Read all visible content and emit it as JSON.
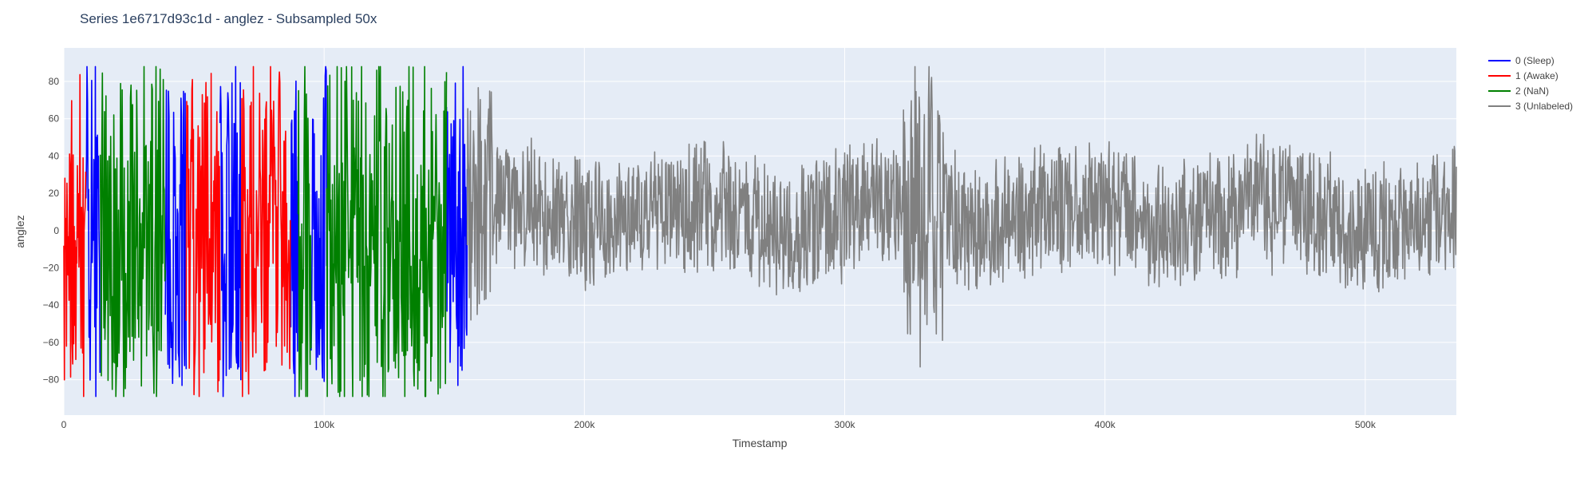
{
  "chart_data": {
    "type": "line",
    "title": "Series 1e6717d93c1d - anglez - Subsampled 50x",
    "xlabel": "Timestamp",
    "ylabel": "anglez",
    "xlim": [
      0,
      535000
    ],
    "ylim": [
      -99,
      98
    ],
    "x_ticks": [
      {
        "value": 0,
        "label": "0"
      },
      {
        "value": 100000,
        "label": "100k"
      },
      {
        "value": 200000,
        "label": "200k"
      },
      {
        "value": 300000,
        "label": "300k"
      },
      {
        "value": 400000,
        "label": "400k"
      },
      {
        "value": 500000,
        "label": "500k"
      }
    ],
    "y_ticks": [
      {
        "value": 80,
        "label": "80"
      },
      {
        "value": 60,
        "label": "60"
      },
      {
        "value": 40,
        "label": "40"
      },
      {
        "value": 20,
        "label": "20"
      },
      {
        "value": 0,
        "label": "0"
      },
      {
        "value": -20,
        "label": "−20"
      },
      {
        "value": -40,
        "label": "−40"
      },
      {
        "value": -60,
        "label": "−60"
      },
      {
        "value": -80,
        "label": "−80"
      }
    ],
    "grid": true,
    "legend_position": "top-right",
    "series": [
      {
        "name": "0 (Sleep)",
        "color": "#0000ff",
        "segments": [
          [
            8500,
            14000
          ],
          [
            39000,
            47000
          ],
          [
            60000,
            68000
          ],
          [
            87000,
            90000
          ],
          [
            95000,
            101000
          ],
          [
            147000,
            155000
          ]
        ]
      },
      {
        "name": "1 (Awake)",
        "color": "#ff0000",
        "segments": [
          [
            0,
            8500
          ],
          [
            47000,
            60000
          ],
          [
            68000,
            87000
          ]
        ]
      },
      {
        "name": "2 (NaN)",
        "color": "#008000",
        "segments": [
          [
            14000,
            39000
          ],
          [
            90000,
            95000
          ],
          [
            101000,
            147000
          ]
        ]
      },
      {
        "name": "3 (Unlabeled)",
        "color": "#808080",
        "segments": [
          [
            155000,
            535000
          ]
        ]
      }
    ]
  }
}
